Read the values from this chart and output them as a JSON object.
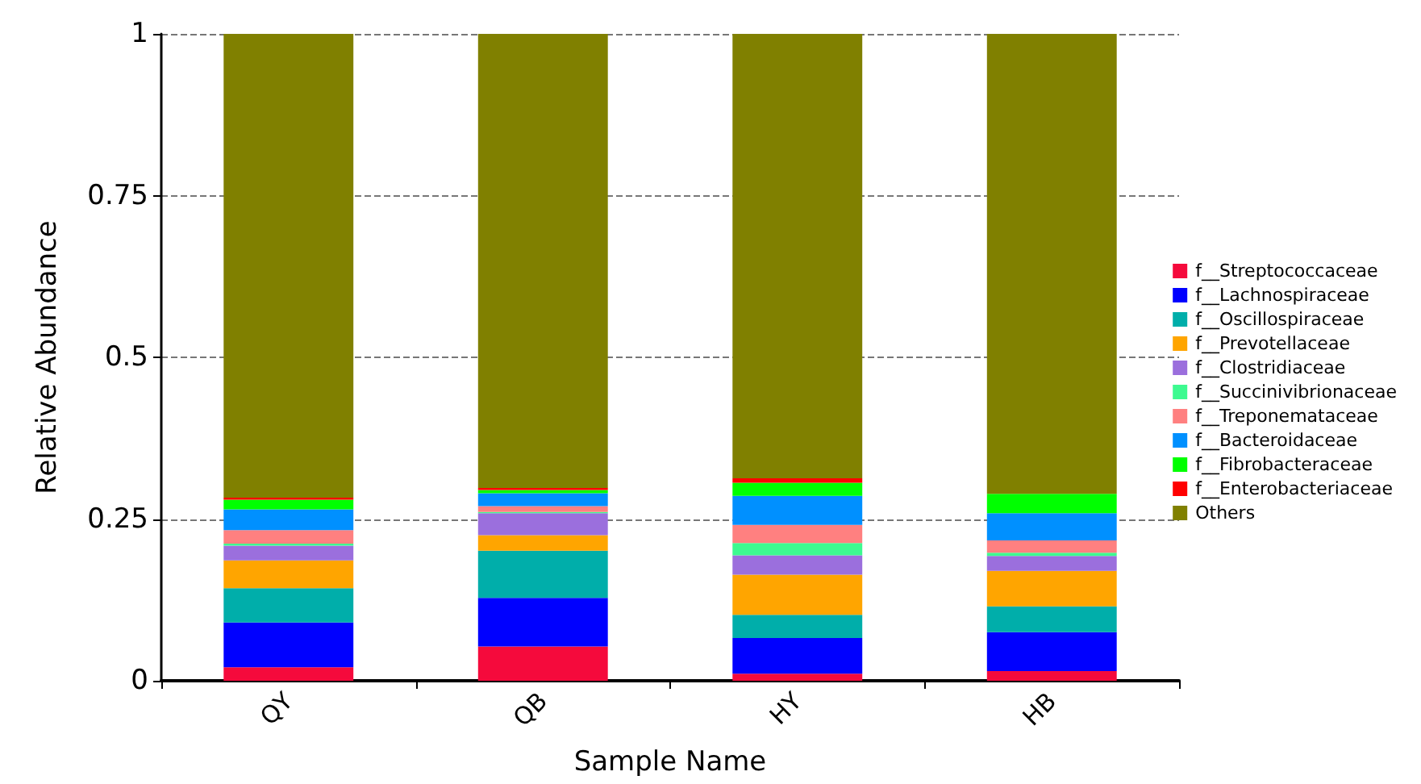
{
  "chart_data": {
    "type": "bar",
    "stacked": true,
    "xlabel": "Sample Name",
    "ylabel": "Relative Abundance",
    "categories": [
      "QY",
      "QB",
      "HY",
      "HB"
    ],
    "ylim": [
      0,
      1
    ],
    "yticks": [
      0,
      0.25,
      0.5,
      0.75,
      1
    ],
    "grid": "y",
    "legend": "right",
    "series": [
      {
        "name": "f__Streptococcaceae",
        "color": "#f50a3c",
        "values": [
          0.021,
          0.053,
          0.011,
          0.015
        ]
      },
      {
        "name": "f__Lachnospiraceae",
        "color": "#0000ff",
        "values": [
          0.069,
          0.075,
          0.055,
          0.06
        ]
      },
      {
        "name": "f__Oscillospiraceae",
        "color": "#00aeaa",
        "values": [
          0.053,
          0.073,
          0.036,
          0.04
        ]
      },
      {
        "name": "f__Prevotellaceae",
        "color": "#ffa500",
        "values": [
          0.043,
          0.024,
          0.062,
          0.055
        ]
      },
      {
        "name": "f__Clostridiaceae",
        "color": "#9b6fdd",
        "values": [
          0.023,
          0.034,
          0.03,
          0.023
        ]
      },
      {
        "name": "f__Succinivibrionaceae",
        "color": "#3dfa90",
        "values": [
          0.003,
          0.002,
          0.019,
          0.005
        ]
      },
      {
        "name": "f__Treponemataceae",
        "color": "#ff8080",
        "values": [
          0.021,
          0.009,
          0.028,
          0.019
        ]
      },
      {
        "name": "f__Bacteroidaceae",
        "color": "#0090ff",
        "values": [
          0.032,
          0.02,
          0.045,
          0.042
        ]
      },
      {
        "name": "f__Fibrobacteraceae",
        "color": "#00ff00",
        "values": [
          0.015,
          0.005,
          0.02,
          0.03
        ]
      },
      {
        "name": "f__Enterobacteriaceae",
        "color": "#ff0000",
        "values": [
          0.003,
          0.003,
          0.007,
          0
        ]
      },
      {
        "name": "Others",
        "color": "#808000",
        "values": [
          0.717,
          0.702,
          0.687,
          0.711
        ]
      }
    ]
  }
}
